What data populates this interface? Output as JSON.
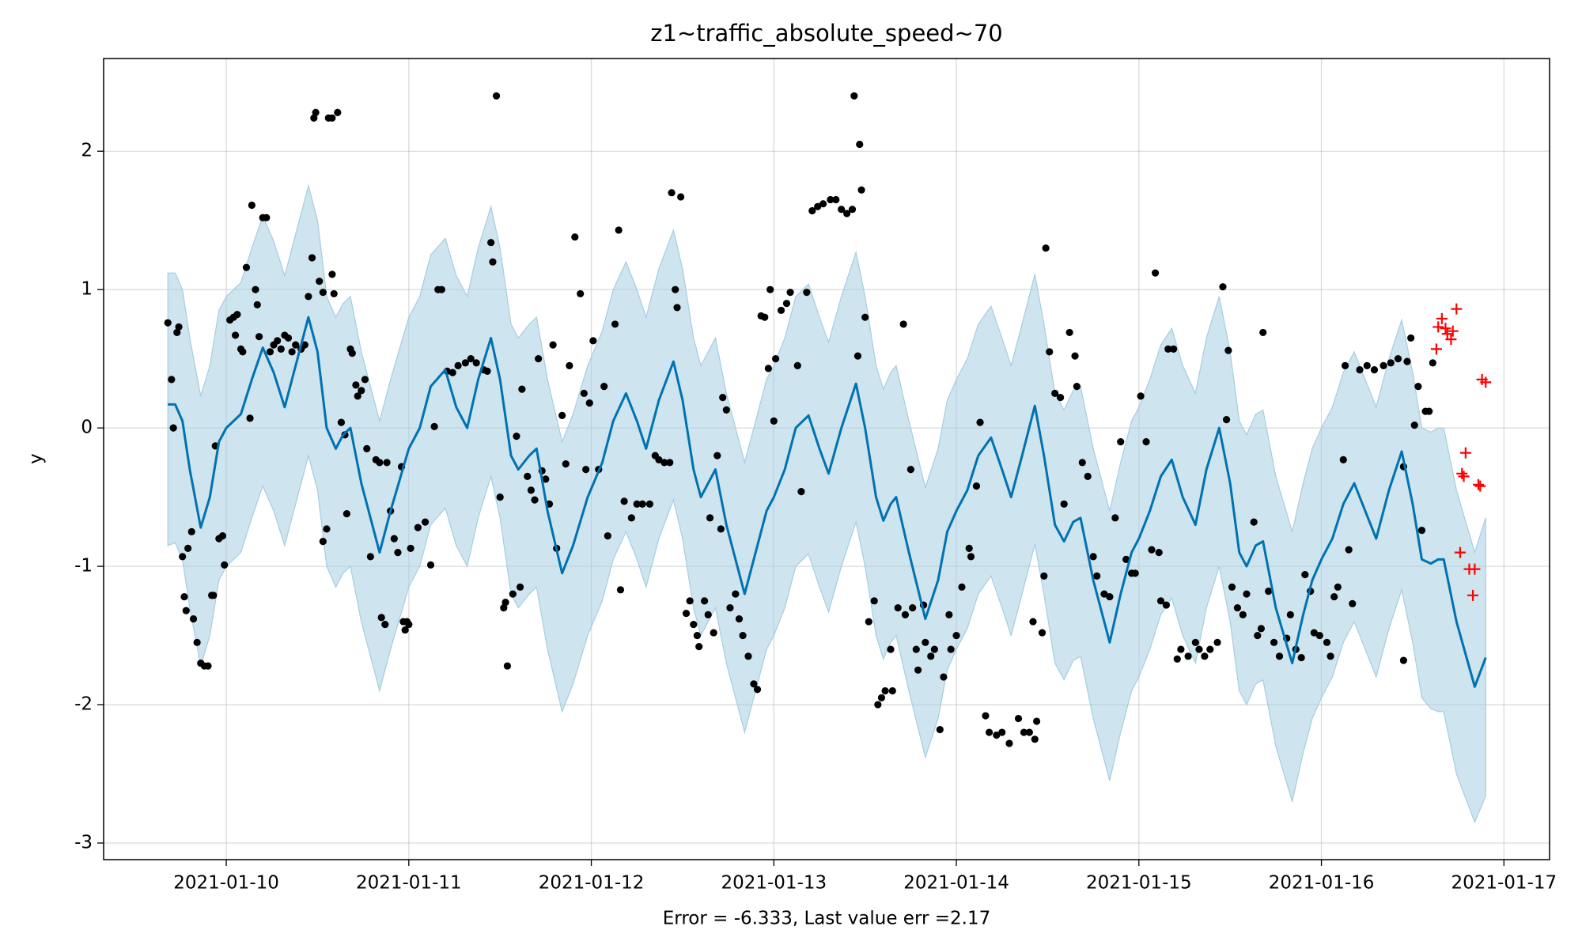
{
  "chart_data": {
    "type": "forecast",
    "title": "z1~traffic_absolute_speed~70",
    "xlabel": "Error = -6.333, Last value err =2.17",
    "ylabel": "y",
    "xlim": [
      -0.672,
      7.25
    ],
    "ylim": [
      -3.12,
      2.67
    ],
    "xticks": [
      {
        "value": 0,
        "label": "2021-01-10"
      },
      {
        "value": 1,
        "label": "2021-01-11"
      },
      {
        "value": 2,
        "label": "2021-01-12"
      },
      {
        "value": 3,
        "label": "2021-01-13"
      },
      {
        "value": 4,
        "label": "2021-01-14"
      },
      {
        "value": 5,
        "label": "2021-01-15"
      },
      {
        "value": 6,
        "label": "2021-01-16"
      },
      {
        "value": 7,
        "label": "2021-01-17"
      }
    ],
    "yticks": [
      -3,
      -2,
      -1,
      0,
      1,
      2
    ],
    "grid": true,
    "forecast": {
      "color": "#0072b2",
      "band_color": "#a6cde2",
      "x": [
        -0.32,
        -0.28,
        -0.24,
        -0.2,
        -0.14,
        -0.09,
        -0.04,
        0.0,
        0.08,
        0.14,
        0.2,
        0.26,
        0.32,
        0.38,
        0.45,
        0.5,
        0.55,
        0.6,
        0.64,
        0.68,
        0.74,
        0.84,
        0.9,
        1.0,
        1.06,
        1.12,
        1.2,
        1.26,
        1.32,
        1.38,
        1.45,
        1.5,
        1.56,
        1.6,
        1.66,
        1.7,
        1.76,
        1.84,
        1.9,
        1.98,
        2.06,
        2.12,
        2.19,
        2.25,
        2.3,
        2.37,
        2.45,
        2.5,
        2.56,
        2.6,
        2.64,
        2.68,
        2.74,
        2.84,
        2.9,
        2.96,
        3.0,
        3.06,
        3.12,
        3.19,
        3.25,
        3.3,
        3.37,
        3.45,
        3.5,
        3.56,
        3.6,
        3.64,
        3.67,
        3.74,
        3.83,
        3.9,
        3.95,
        4.0,
        4.06,
        4.12,
        4.19,
        4.25,
        4.3,
        4.36,
        4.43,
        4.48,
        4.54,
        4.59,
        4.64,
        4.68,
        4.75,
        4.84,
        4.9,
        4.96,
        5.0,
        5.06,
        5.12,
        5.18,
        5.24,
        5.31,
        5.37,
        5.44,
        5.5,
        5.55,
        5.59,
        5.64,
        5.68,
        5.75,
        5.84,
        5.9,
        5.95,
        6.0,
        6.06,
        6.12,
        6.18,
        6.24,
        6.3,
        6.37,
        6.44,
        6.5,
        6.55,
        6.6,
        6.64,
        6.67,
        6.74,
        6.84,
        6.9
      ],
      "values": [
        0.17,
        0.17,
        0.05,
        -0.3,
        -0.72,
        -0.5,
        -0.1,
        0.0,
        0.1,
        0.35,
        0.58,
        0.4,
        0.15,
        0.45,
        0.8,
        0.55,
        0.0,
        -0.15,
        -0.05,
        0.0,
        -0.4,
        -0.9,
        -0.6,
        -0.15,
        0.0,
        0.3,
        0.42,
        0.15,
        0.0,
        0.35,
        0.65,
        0.35,
        -0.2,
        -0.3,
        -0.2,
        -0.15,
        -0.6,
        -1.05,
        -0.85,
        -0.5,
        -0.25,
        0.05,
        0.25,
        0.05,
        -0.15,
        0.2,
        0.48,
        0.2,
        -0.3,
        -0.5,
        -0.4,
        -0.3,
        -0.7,
        -1.2,
        -0.9,
        -0.6,
        -0.5,
        -0.3,
        0.0,
        0.09,
        -0.15,
        -0.33,
        0.0,
        0.32,
        0.0,
        -0.5,
        -0.67,
        -0.55,
        -0.5,
        -0.9,
        -1.38,
        -1.1,
        -0.75,
        -0.6,
        -0.45,
        -0.2,
        -0.07,
        -0.3,
        -0.5,
        -0.2,
        0.16,
        -0.2,
        -0.7,
        -0.82,
        -0.68,
        -0.65,
        -1.1,
        -1.55,
        -1.2,
        -0.9,
        -0.8,
        -0.6,
        -0.35,
        -0.23,
        -0.5,
        -0.7,
        -0.3,
        0.0,
        -0.4,
        -0.9,
        -1.0,
        -0.85,
        -0.82,
        -1.3,
        -1.7,
        -1.35,
        -1.1,
        -0.95,
        -0.8,
        -0.55,
        -0.4,
        -0.6,
        -0.8,
        -0.45,
        -0.17,
        -0.55,
        -0.95,
        -0.98,
        -0.95,
        -0.95,
        -1.4,
        -1.87,
        -1.66
      ],
      "upper": [
        1.12,
        1.12,
        1.0,
        0.65,
        0.23,
        0.45,
        0.85,
        0.95,
        1.05,
        1.3,
        1.53,
        1.35,
        1.1,
        1.4,
        1.75,
        1.5,
        0.95,
        0.8,
        0.9,
        0.95,
        0.55,
        0.05,
        0.35,
        0.8,
        0.95,
        1.25,
        1.37,
        1.1,
        0.95,
        1.3,
        1.6,
        1.3,
        0.75,
        0.65,
        0.75,
        0.8,
        0.35,
        -0.1,
        0.1,
        0.45,
        0.7,
        1.0,
        1.2,
        1.0,
        0.8,
        1.15,
        1.43,
        1.15,
        0.65,
        0.45,
        0.55,
        0.65,
        0.25,
        -0.25,
        0.05,
        0.35,
        0.45,
        0.65,
        0.95,
        1.04,
        0.8,
        0.62,
        0.95,
        1.27,
        0.95,
        0.45,
        0.28,
        0.4,
        0.45,
        0.05,
        -0.43,
        -0.15,
        0.2,
        0.35,
        0.5,
        0.75,
        0.88,
        0.65,
        0.45,
        0.75,
        1.11,
        0.75,
        0.25,
        0.13,
        0.27,
        0.3,
        -0.15,
        -0.6,
        -0.25,
        0.05,
        0.15,
        0.35,
        0.6,
        0.72,
        0.45,
        0.25,
        0.65,
        0.95,
        0.55,
        0.05,
        -0.05,
        0.1,
        0.13,
        -0.35,
        -0.75,
        -0.4,
        -0.15,
        0.0,
        0.15,
        0.4,
        0.55,
        0.35,
        0.15,
        0.5,
        0.78,
        0.4,
        0.0,
        -0.03,
        0.0,
        0.0,
        -0.45,
        -0.9,
        -0.65
      ],
      "lower": [
        -0.85,
        -0.83,
        -0.95,
        -1.3,
        -1.72,
        -1.5,
        -1.1,
        -1.0,
        -0.9,
        -0.65,
        -0.42,
        -0.6,
        -0.85,
        -0.55,
        -0.2,
        -0.45,
        -1.0,
        -1.15,
        -1.05,
        -1.0,
        -1.4,
        -1.9,
        -1.6,
        -1.15,
        -1.0,
        -0.7,
        -0.58,
        -0.85,
        -1.0,
        -0.65,
        -0.35,
        -0.65,
        -1.2,
        -1.3,
        -1.2,
        -1.15,
        -1.6,
        -2.05,
        -1.85,
        -1.5,
        -1.25,
        -0.95,
        -0.75,
        -0.95,
        -1.15,
        -0.8,
        -0.52,
        -0.8,
        -1.3,
        -1.5,
        -1.4,
        -1.3,
        -1.7,
        -2.2,
        -1.9,
        -1.6,
        -1.5,
        -1.3,
        -1.0,
        -0.91,
        -1.15,
        -1.33,
        -1.0,
        -0.68,
        -1.0,
        -1.5,
        -1.67,
        -1.55,
        -1.5,
        -1.9,
        -2.38,
        -2.1,
        -1.75,
        -1.6,
        -1.45,
        -1.2,
        -1.07,
        -1.3,
        -1.5,
        -1.2,
        -0.84,
        -1.2,
        -1.7,
        -1.82,
        -1.68,
        -1.65,
        -2.1,
        -2.55,
        -2.2,
        -1.9,
        -1.8,
        -1.6,
        -1.35,
        -1.23,
        -1.5,
        -1.7,
        -1.3,
        -1.0,
        -1.4,
        -1.9,
        -2.0,
        -1.85,
        -1.82,
        -2.3,
        -2.7,
        -2.35,
        -2.1,
        -1.95,
        -1.8,
        -1.55,
        -1.4,
        -1.6,
        -1.8,
        -1.45,
        -1.17,
        -1.55,
        -1.95,
        -2.03,
        -2.05,
        -2.05,
        -2.5,
        -2.85,
        -2.66
      ]
    },
    "observed": {
      "color": "#000000",
      "x": [
        -0.32,
        -0.3,
        -0.29,
        -0.27,
        -0.26,
        -0.24,
        -0.23,
        -0.22,
        -0.21,
        -0.19,
        -0.18,
        -0.16,
        -0.14,
        -0.12,
        -0.1,
        -0.08,
        -0.07,
        -0.06,
        -0.04,
        -0.02,
        -0.01,
        0.02,
        0.04,
        0.06,
        0.05,
        0.08,
        0.09,
        0.11,
        0.13,
        0.14,
        0.16,
        0.17,
        0.18,
        0.2,
        0.22,
        0.24,
        0.26,
        0.28,
        0.3,
        0.32,
        0.34,
        0.36,
        0.38,
        0.41,
        0.43,
        0.45,
        0.47,
        0.48,
        0.49,
        0.51,
        0.53,
        0.53,
        0.55,
        0.56,
        0.58,
        0.61,
        0.58,
        0.59,
        0.63,
        0.65,
        0.66,
        0.68,
        0.69,
        0.71,
        0.72,
        0.74,
        0.76,
        0.77,
        0.79,
        0.82,
        0.84,
        0.85,
        0.87,
        0.88,
        0.9,
        0.92,
        0.94,
        0.96,
        0.97,
        0.98,
        0.99,
        1.0,
        1.01,
        1.05,
        1.09,
        1.12,
        1.14,
        1.16,
        1.18,
        1.21,
        1.24,
        1.27,
        1.31,
        1.34,
        1.37,
        1.41,
        1.43,
        1.45,
        1.46,
        1.48,
        1.5,
        1.52,
        1.53,
        1.54,
        1.57,
        1.59,
        1.61,
        1.62,
        1.65,
        1.67,
        1.69,
        1.71,
        1.73,
        1.75,
        1.77,
        1.79,
        1.81,
        1.84,
        1.86,
        1.88,
        1.91,
        1.94,
        1.96,
        1.97,
        1.99,
        2.01,
        2.04,
        2.07,
        2.09,
        2.13,
        2.15,
        2.16,
        2.18,
        2.22,
        2.25,
        2.28,
        2.32,
        2.35,
        2.37,
        2.4,
        2.43,
        2.44,
        2.46,
        2.47,
        2.49,
        2.52,
        2.54,
        2.56,
        2.58,
        2.59,
        2.62,
        2.64,
        2.65,
        2.67,
        2.69,
        2.71,
        2.72,
        2.74,
        2.76,
        2.79,
        2.81,
        2.83,
        2.86,
        2.89,
        2.91,
        2.93,
        2.95,
        2.97,
        2.98,
        3.0,
        3.01,
        3.04,
        3.07,
        3.09,
        3.13,
        3.15,
        3.18,
        3.21,
        3.24,
        3.27,
        3.31,
        3.34,
        3.37,
        3.4,
        3.43,
        3.44,
        3.47,
        3.48,
        3.46,
        3.5,
        3.52,
        3.55,
        3.57,
        3.59,
        3.61,
        3.65,
        3.64,
        3.68,
        3.72,
        3.71,
        3.75,
        3.76,
        3.78,
        3.79,
        3.82,
        3.83,
        3.86,
        3.88,
        3.91,
        3.93,
        3.96,
        3.97,
        4.0,
        4.03,
        4.07,
        4.08,
        4.11,
        4.13,
        4.16,
        4.18,
        4.22,
        4.25,
        4.29,
        4.34,
        4.37,
        4.4,
        4.43,
        4.44,
        4.42,
        4.47,
        4.48,
        4.49,
        4.51,
        4.54,
        4.57,
        4.59,
        4.62,
        4.65,
        4.66,
        4.69,
        4.72,
        4.75,
        4.77,
        4.81,
        4.84,
        4.87,
        4.9,
        4.93,
        4.96,
        4.98,
        5.01,
        5.04,
        5.07,
        5.09,
        5.11,
        5.12,
        5.15,
        5.16,
        5.19,
        5.21,
        5.23,
        5.27,
        5.31,
        5.33,
        5.36,
        5.39,
        5.43,
        5.46,
        5.48,
        5.49,
        5.51,
        5.54,
        5.57,
        5.59,
        5.63,
        5.65,
        5.67,
        5.68,
        5.71,
        5.74,
        5.77,
        5.81,
        5.83,
        5.86,
        5.89,
        5.91,
        5.94,
        5.96,
        5.99,
        6.03,
        6.05,
        6.07,
        6.09,
        6.12,
        6.13,
        6.15,
        6.17,
        6.21,
        6.25,
        6.29,
        6.34,
        6.38,
        6.42,
        6.45,
        6.47,
        6.45,
        6.49,
        6.51,
        6.53,
        6.55,
        6.57,
        6.59,
        6.61
      ],
      "y": [
        0.76,
        0.35,
        0.0,
        0.69,
        0.73,
        -0.93,
        -1.22,
        -1.32,
        -0.87,
        -0.75,
        -1.38,
        -1.55,
        -1.7,
        -1.72,
        -1.72,
        -1.21,
        -1.21,
        -0.13,
        -0.8,
        -0.78,
        -0.99,
        0.78,
        0.8,
        0.82,
        0.67,
        0.57,
        0.55,
        1.16,
        0.07,
        1.61,
        1.0,
        0.89,
        0.66,
        1.52,
        1.52,
        0.55,
        0.6,
        0.63,
        0.57,
        0.67,
        0.65,
        0.55,
        0.6,
        0.57,
        0.6,
        0.95,
        1.23,
        2.24,
        2.28,
        1.06,
        0.98,
        -0.82,
        -0.73,
        2.24,
        2.24,
        2.28,
        1.11,
        0.97,
        0.04,
        -0.05,
        -0.62,
        0.57,
        0.54,
        0.31,
        0.23,
        0.27,
        0.35,
        -0.15,
        -0.93,
        -0.23,
        -0.25,
        -1.37,
        -1.42,
        -0.25,
        -0.6,
        -0.8,
        -0.9,
        -0.28,
        -1.4,
        -1.46,
        -1.4,
        -1.42,
        -0.87,
        -0.72,
        -0.68,
        -0.99,
        0.01,
        1.0,
        1.0,
        0.41,
        0.4,
        0.45,
        0.47,
        0.5,
        0.47,
        0.42,
        0.41,
        1.34,
        1.2,
        2.4,
        -0.5,
        -1.3,
        -1.26,
        -1.72,
        -1.2,
        -0.06,
        -1.15,
        0.28,
        -0.35,
        -0.45,
        -0.52,
        0.5,
        -0.31,
        -0.37,
        -0.55,
        0.6,
        -0.87,
        0.09,
        -0.26,
        0.45,
        1.38,
        0.97,
        0.25,
        -0.3,
        0.18,
        0.63,
        -0.3,
        0.3,
        -0.78,
        0.75,
        1.43,
        -1.17,
        -0.53,
        -0.65,
        -0.55,
        -0.55,
        -0.55,
        -0.2,
        -0.23,
        -0.25,
        -0.25,
        1.7,
        1.0,
        0.87,
        1.67,
        -1.34,
        -1.25,
        -1.42,
        -1.5,
        -1.58,
        -1.25,
        -1.35,
        -0.65,
        -1.48,
        -0.2,
        -0.73,
        0.22,
        0.13,
        -1.3,
        -1.2,
        -1.38,
        -1.5,
        -1.65,
        -1.85,
        -1.89,
        0.81,
        0.8,
        0.43,
        1.0,
        0.05,
        0.5,
        0.85,
        0.9,
        0.98,
        0.45,
        -0.46,
        0.98,
        1.57,
        1.6,
        1.62,
        1.65,
        1.65,
        1.58,
        1.55,
        1.58,
        2.4,
        2.05,
        1.72,
        0.52,
        0.8,
        -1.4,
        -1.25,
        -2.0,
        -1.95,
        -1.9,
        -1.9,
        -1.6,
        -1.3,
        -1.35,
        0.75,
        -0.3,
        -1.3,
        -1.6,
        -1.75,
        -1.28,
        -1.55,
        -1.65,
        -1.6,
        -2.18,
        -1.8,
        -1.35,
        -1.6,
        -1.5,
        -1.15,
        -0.87,
        -0.93,
        -0.42,
        0.04,
        -2.08,
        -2.2,
        -2.22,
        -2.2,
        -2.28,
        -2.1,
        -2.2,
        -2.2,
        -2.25,
        -2.12,
        -1.4,
        -1.48,
        -1.07,
        1.3,
        0.55,
        0.25,
        0.22,
        -0.55,
        0.69,
        0.52,
        0.3,
        -0.25,
        -0.35,
        -0.93,
        -1.07,
        -1.2,
        -1.22,
        -0.65,
        -0.1,
        -0.95,
        -1.05,
        -1.05,
        0.23,
        -0.1,
        -0.88,
        1.12,
        -0.9,
        -1.25,
        -1.28,
        0.57,
        0.57,
        -1.67,
        -1.6,
        -1.65,
        -1.55,
        -1.6,
        -1.65,
        -1.6,
        -1.55,
        1.02,
        0.06,
        0.56,
        -1.15,
        -1.3,
        -1.35,
        -1.2,
        -0.68,
        -1.5,
        -1.45,
        0.69,
        -1.18,
        -1.55,
        -1.65,
        -1.52,
        -1.35,
        -1.6,
        -1.66,
        -1.06,
        -1.18,
        -1.48,
        -1.5,
        -1.55,
        -1.65,
        -1.22,
        -1.15,
        -0.23,
        0.45,
        -0.88,
        -1.27,
        0.42,
        0.45,
        0.42,
        0.45,
        0.47,
        0.5,
        -0.28,
        0.48,
        -1.68,
        0.65,
        0.02,
        0.3,
        -0.74,
        0.12,
        0.12,
        0.47
      ]
    },
    "new_observed": {
      "color": "#ff0000",
      "marker": "+",
      "x": [
        6.63,
        6.64,
        6.66,
        6.68,
        6.69,
        6.71,
        6.72,
        6.74,
        6.76,
        6.77,
        6.78,
        6.79,
        6.81,
        6.83,
        6.84,
        6.86,
        6.87,
        6.88,
        6.9
      ],
      "y": [
        0.57,
        0.73,
        0.79,
        0.72,
        0.68,
        0.64,
        0.7,
        0.86,
        -0.9,
        -0.33,
        -0.35,
        -0.18,
        -1.02,
        -1.21,
        -1.02,
        -0.41,
        -0.42,
        0.35,
        0.33
      ]
    }
  }
}
